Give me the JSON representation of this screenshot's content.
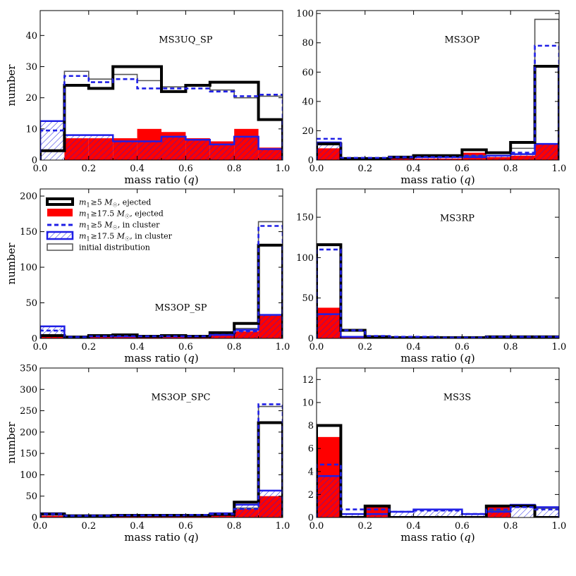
{
  "colors": {
    "ejected_all": "#000000",
    "ejected_massive": "#ff0000",
    "cluster_all": "#1f1fe6",
    "cluster_massive": "#1f1fe6",
    "initial": "#555555"
  },
  "legend": {
    "items": [
      {
        "key": "ejected_all",
        "label_var": "m",
        "label_sub": "1",
        "label_rel": "≥5 ",
        "label_unit": "M",
        "label_unit_sub": "☉",
        "label_tail": ", ejected"
      },
      {
        "key": "ejected_massive",
        "label_var": "m",
        "label_sub": "1",
        "label_rel": "≥17.5 ",
        "label_unit": "M",
        "label_unit_sub": "☉",
        "label_tail": ", ejected"
      },
      {
        "key": "cluster_all",
        "label_var": "m",
        "label_sub": "1",
        "label_rel": "≥5 ",
        "label_unit": "M",
        "label_unit_sub": "☉",
        "label_tail": ", in cluster"
      },
      {
        "key": "cluster_massive",
        "label_var": "m",
        "label_sub": "1",
        "label_rel": "≥17.5 ",
        "label_unit": "M",
        "label_unit_sub": "☉",
        "label_tail": ", in cluster"
      },
      {
        "key": "initial",
        "label_plain": "initial distribution"
      }
    ]
  },
  "chart_data": [
    {
      "type": "histogram",
      "title": "MS3UQ_SP",
      "xlabel_main": "mass ratio (",
      "xlabel_var": "q",
      "xlabel_end": ")",
      "ylabel": "number",
      "bin_edges": [
        0.0,
        0.1,
        0.2,
        0.3,
        0.4,
        0.5,
        0.6,
        0.7,
        0.8,
        0.9,
        1.0
      ],
      "xlim": [
        0,
        1
      ],
      "ylim": [
        0,
        48
      ],
      "xticks": [
        "0.0",
        "0.2",
        "0.4",
        "0.6",
        "0.8",
        "1.0"
      ],
      "yticks": [
        0,
        10,
        20,
        30,
        40
      ],
      "series": [
        {
          "name": "m1 ≥ 5 Msun, ejected",
          "values": [
            3,
            24,
            23,
            30,
            30,
            22,
            24,
            25,
            25,
            13
          ]
        },
        {
          "name": "m1 ≥ 17.5 Msun, ejected",
          "values": [
            0,
            7,
            7,
            7,
            10,
            9,
            7,
            6,
            10,
            4
          ]
        },
        {
          "name": "m1 ≥ 5 Msun, in cluster",
          "values": [
            9.5,
            27,
            25,
            26,
            23,
            23,
            23,
            22,
            20.5,
            21
          ]
        },
        {
          "name": "m1 ≥ 17.5 Msun, in cluster",
          "values": [
            12.5,
            8,
            8,
            6,
            6,
            7.5,
            6.5,
            5,
            7.5,
            3.5
          ]
        },
        {
          "name": "initial distribution",
          "values": [
            3,
            28.5,
            26,
            27.5,
            25.5,
            23.5,
            24,
            22.5,
            20,
            20.5
          ]
        }
      ]
    },
    {
      "type": "histogram",
      "title": "MS3OP",
      "xlabel_main": "mass ratio (",
      "xlabel_var": "q",
      "xlabel_end": ")",
      "ylabel": "",
      "bin_edges": [
        0.0,
        0.1,
        0.2,
        0.3,
        0.4,
        0.5,
        0.6,
        0.7,
        0.8,
        0.9,
        1.0
      ],
      "xlim": [
        0,
        1
      ],
      "ylim": [
        0,
        102
      ],
      "xticks": [
        "0.0",
        "0.2",
        "0.4",
        "0.6",
        "0.8",
        "1.0"
      ],
      "yticks": [
        0,
        20,
        40,
        60,
        80,
        100
      ],
      "series": [
        {
          "name": "m1 ≥ 5 Msun, ejected",
          "values": [
            11,
            1,
            1,
            2,
            3,
            3,
            7,
            5,
            12,
            64
          ]
        },
        {
          "name": "m1 ≥ 17.5 Msun, ejected",
          "values": [
            8,
            1,
            1,
            1,
            1,
            1,
            5,
            2,
            3,
            11
          ]
        },
        {
          "name": "m1 ≥ 5 Msun, in cluster",
          "values": [
            14.5,
            1.5,
            1.5,
            2,
            2,
            2,
            3,
            3,
            5,
            78
          ]
        },
        {
          "name": "m1 ≥ 17.5 Msun, in cluster",
          "values": [
            12,
            1,
            1,
            1.5,
            2,
            2,
            2,
            3,
            4,
            11
          ]
        },
        {
          "name": "initial distribution",
          "values": [
            12,
            1,
            1,
            2,
            2,
            2,
            3,
            3,
            8,
            96
          ]
        }
      ]
    },
    {
      "type": "histogram",
      "title": "MS3OP_SP",
      "xlabel_main": "mass ratio (",
      "xlabel_var": "q",
      "xlabel_end": ")",
      "ylabel": "number",
      "bin_edges": [
        0.0,
        0.1,
        0.2,
        0.3,
        0.4,
        0.5,
        0.6,
        0.7,
        0.8,
        0.9,
        1.0
      ],
      "xlim": [
        0,
        1
      ],
      "ylim": [
        0,
        210
      ],
      "xticks": [
        "0.0",
        "0.2",
        "0.4",
        "0.6",
        "0.8",
        "1.0"
      ],
      "yticks": [
        0,
        50,
        100,
        150,
        200
      ],
      "series": [
        {
          "name": "m1 ≥ 5 Msun, ejected",
          "values": [
            4,
            2,
            4,
            5,
            3,
            4,
            3,
            8,
            21,
            131
          ]
        },
        {
          "name": "m1 ≥ 17.5 Msun, ejected",
          "values": [
            2,
            1,
            2,
            2,
            2,
            2,
            2,
            4,
            10,
            32
          ]
        },
        {
          "name": "m1 ≥ 5 Msun, in cluster",
          "values": [
            11,
            2,
            3,
            3,
            3,
            3,
            3,
            5,
            10,
            158
          ]
        },
        {
          "name": "m1 ≥ 17.5 Msun, in cluster",
          "values": [
            17,
            2,
            3,
            3,
            3,
            3,
            3,
            5,
            12,
            33
          ]
        },
        {
          "name": "initial distribution",
          "values": [
            3,
            2,
            3,
            3,
            3,
            3,
            3,
            5,
            14,
            164
          ]
        }
      ]
    },
    {
      "type": "histogram",
      "title": "MS3RP",
      "xlabel_main": "mass ratio (",
      "xlabel_var": "q",
      "xlabel_end": ")",
      "ylabel": "",
      "bin_edges": [
        0.0,
        0.1,
        0.2,
        0.3,
        0.4,
        0.5,
        0.6,
        0.7,
        0.8,
        0.9,
        1.0
      ],
      "xlim": [
        0,
        1
      ],
      "ylim": [
        0,
        185
      ],
      "xticks": [
        "0.0",
        "0.2",
        "0.4",
        "0.6",
        "0.8",
        "1.0"
      ],
      "yticks": [
        0,
        50,
        100,
        150
      ],
      "series": [
        {
          "name": "m1 ≥ 5 Msun, ejected",
          "values": [
            116,
            10,
            2,
            1,
            1,
            1,
            1,
            2,
            2,
            2
          ]
        },
        {
          "name": "m1 ≥ 17.5 Msun, ejected",
          "values": [
            38,
            3,
            1,
            1,
            1,
            1,
            1,
            1,
            1,
            1
          ]
        },
        {
          "name": "m1 ≥ 5 Msun, in cluster",
          "values": [
            110,
            10,
            3,
            2,
            2,
            1,
            1,
            2,
            2,
            2
          ]
        },
        {
          "name": "m1 ≥ 17.5 Msun, in cluster",
          "values": [
            30,
            2,
            1,
            1,
            1,
            1,
            1,
            1,
            1,
            1
          ]
        },
        {
          "name": "initial distribution",
          "values": [
            117,
            11,
            3,
            2,
            1,
            1,
            1,
            2,
            2,
            2
          ]
        }
      ]
    },
    {
      "type": "histogram",
      "title": "MS3OP_SPC",
      "xlabel_main": "mass ratio (",
      "xlabel_var": "q",
      "xlabel_end": ")",
      "ylabel": "number",
      "bin_edges": [
        0.0,
        0.1,
        0.2,
        0.3,
        0.4,
        0.5,
        0.6,
        0.7,
        0.8,
        0.9,
        1.0
      ],
      "xlim": [
        0,
        1
      ],
      "ylim": [
        0,
        350
      ],
      "xticks": [
        "0.0",
        "0.2",
        "0.4",
        "0.6",
        "0.8",
        "1.0"
      ],
      "yticks": [
        0,
        50,
        100,
        150,
        200,
        250,
        300,
        350
      ],
      "series": [
        {
          "name": "m1 ≥ 5 Msun, ejected",
          "values": [
            8,
            4,
            4,
            5,
            5,
            5,
            5,
            7,
            36,
            222
          ]
        },
        {
          "name": "m1 ≥ 17.5 Msun, ejected",
          "values": [
            4,
            2,
            2,
            3,
            3,
            3,
            3,
            4,
            20,
            50
          ]
        },
        {
          "name": "m1 ≥ 5 Msun, in cluster",
          "values": [
            8,
            4,
            4,
            5,
            5,
            5,
            6,
            8,
            20,
            265
          ]
        },
        {
          "name": "m1 ≥ 17.5 Msun, in cluster",
          "values": [
            10,
            5,
            5,
            5,
            5,
            5,
            6,
            10,
            30,
            63
          ]
        },
        {
          "name": "initial distribution",
          "values": [
            7,
            4,
            4,
            5,
            5,
            5,
            6,
            8,
            22,
            260
          ]
        }
      ]
    },
    {
      "type": "histogram",
      "title": "MS3S",
      "xlabel_main": "mass ratio (",
      "xlabel_var": "q",
      "xlabel_end": ")",
      "ylabel": "",
      "bin_edges": [
        0.0,
        0.1,
        0.2,
        0.3,
        0.4,
        0.5,
        0.6,
        0.7,
        0.8,
        0.9,
        1.0
      ],
      "xlim": [
        0,
        1
      ],
      "ylim": [
        0,
        13
      ],
      "xticks": [
        "0.0",
        "0.2",
        "0.4",
        "0.6",
        "0.8",
        "1.0"
      ],
      "yticks": [
        0,
        2,
        4,
        6,
        8,
        10,
        12
      ],
      "series": [
        {
          "name": "m1 ≥ 5 Msun, ejected",
          "values": [
            8,
            0,
            1,
            0,
            0,
            0,
            0,
            1,
            1,
            0
          ]
        },
        {
          "name": "m1 ≥ 17.5 Msun, ejected",
          "values": [
            7,
            0,
            1,
            0,
            0,
            0,
            0,
            1,
            0,
            0
          ]
        },
        {
          "name": "m1 ≥ 5 Msun, in cluster",
          "values": [
            4.6,
            0.7,
            0.7,
            0.5,
            0.6,
            0.6,
            0.3,
            0.7,
            0.9,
            0.7
          ]
        },
        {
          "name": "m1 ≥ 17.5 Msun, in cluster",
          "values": [
            3.6,
            0.3,
            0.3,
            0.5,
            0.7,
            0.7,
            0.3,
            0.5,
            1.1,
            0.9
          ]
        },
        {
          "name": "initial distribution",
          "values": [
            3.6,
            0.3,
            0.3,
            0.5,
            0.7,
            0.7,
            0.3,
            0.6,
            1.0,
            0.8
          ]
        }
      ]
    }
  ]
}
